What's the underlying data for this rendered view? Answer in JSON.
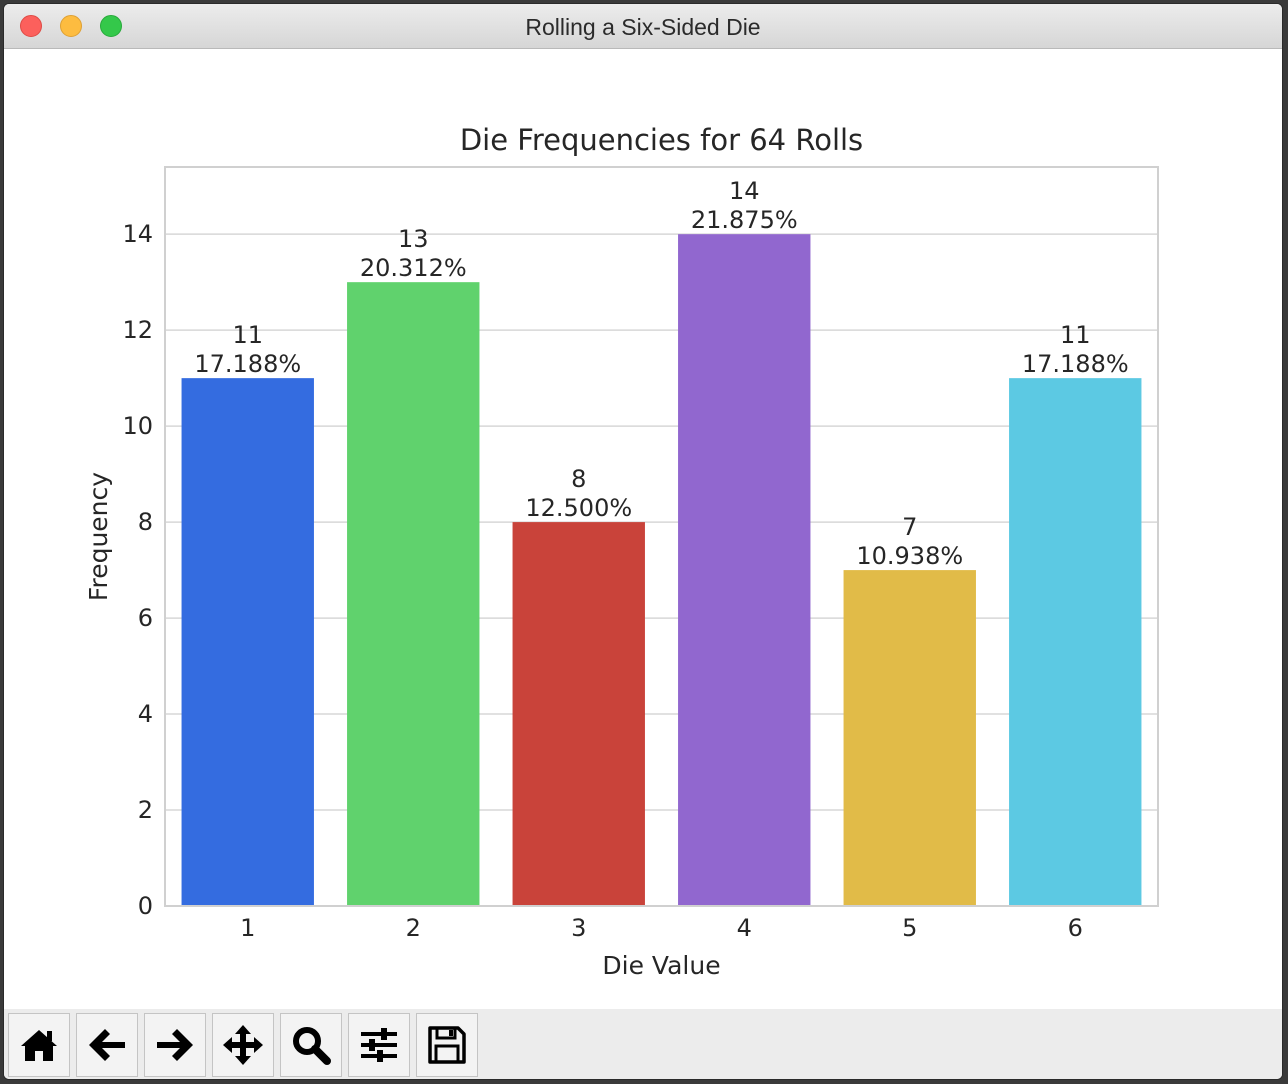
{
  "window": {
    "title": "Rolling a Six-Sided Die"
  },
  "toolbar": {
    "buttons": [
      {
        "name": "home",
        "icon": "home-icon"
      },
      {
        "name": "back",
        "icon": "arrow-left-icon"
      },
      {
        "name": "forward",
        "icon": "arrow-right-icon"
      },
      {
        "name": "pan",
        "icon": "move-icon"
      },
      {
        "name": "zoom",
        "icon": "magnifier-icon"
      },
      {
        "name": "configure",
        "icon": "sliders-icon"
      },
      {
        "name": "save",
        "icon": "floppy-disk-icon"
      }
    ]
  },
  "chart_data": {
    "type": "bar",
    "title": "Die Frequencies for 64 Rolls",
    "xlabel": "Die Value",
    "ylabel": "Frequency",
    "categories": [
      "1",
      "2",
      "3",
      "4",
      "5",
      "6"
    ],
    "values": [
      11,
      13,
      8,
      14,
      7,
      11
    ],
    "bar_labels": [
      "11\n17.188%",
      "13\n20.312%",
      "8\n12.500%",
      "14\n21.875%",
      "7\n10.938%",
      "11\n17.188%"
    ],
    "colors": [
      "#346ce0",
      "#60d26d",
      "#c9433a",
      "#9167cf",
      "#e1bb48",
      "#5cc9e3"
    ],
    "ylim": [
      0,
      15.4
    ],
    "yticks": [
      0,
      2,
      4,
      6,
      8,
      10,
      12,
      14
    ],
    "grid": true,
    "legend": "none"
  }
}
